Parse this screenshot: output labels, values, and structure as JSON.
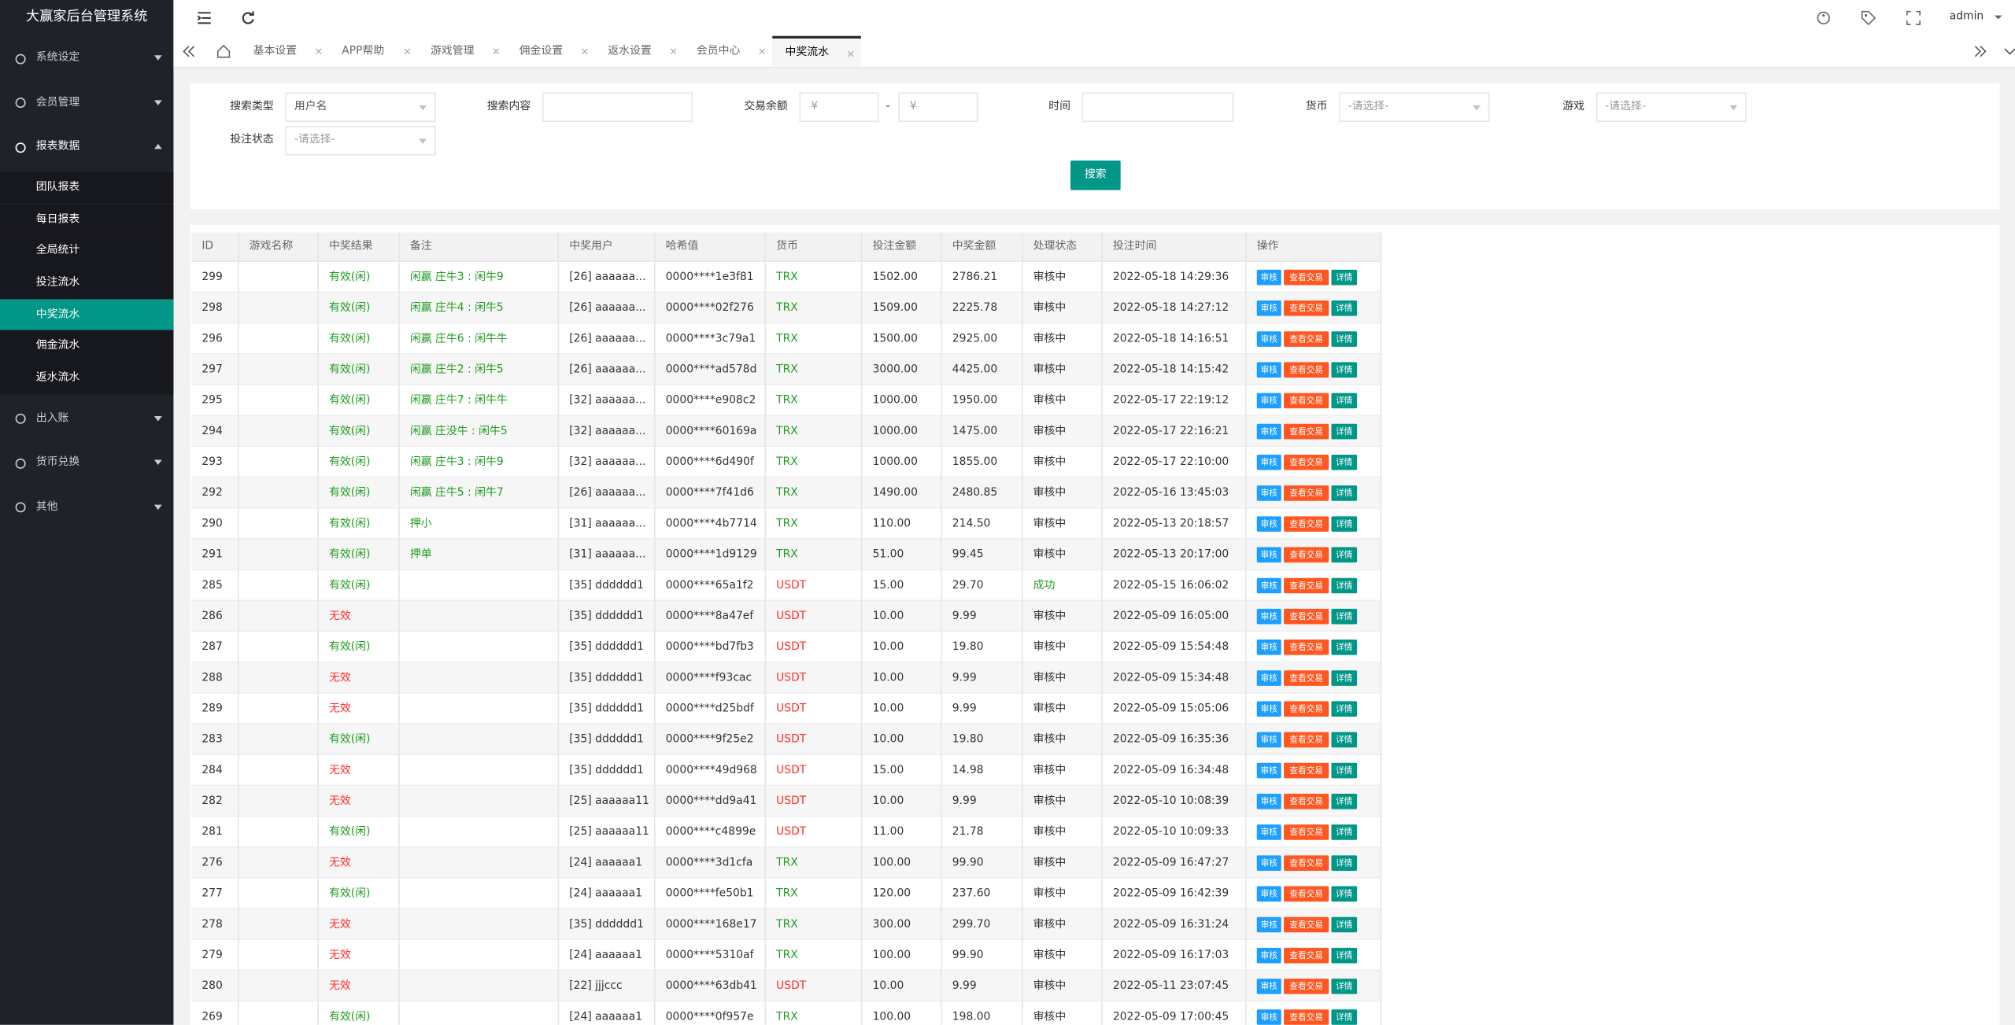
{
  "sidebar": {
    "title": "大赢家后台管理系统",
    "menu": [
      {
        "label": "系统设定"
      },
      {
        "label": "会员管理"
      },
      {
        "label": "报表数据",
        "children": [
          "团队报表",
          "每日报表",
          "全局统计",
          "投注流水",
          "中奖流水",
          "佣金流水",
          "返水流水"
        ]
      },
      {
        "label": "出入账"
      },
      {
        "label": "货币兑换"
      },
      {
        "label": "其他"
      }
    ],
    "active": "中奖流水"
  },
  "header": {
    "user": "admin"
  },
  "tabs": {
    "items": [
      "基本设置",
      "APP帮助",
      "游戏管理",
      "佣金设置",
      "返水设置",
      "会员中心",
      "中奖流水"
    ],
    "active": 6
  },
  "form": {
    "search_type_label": "搜索类型",
    "search_type_value": "用户名",
    "search_content_label": "搜索内容",
    "balance_label": "交易余额",
    "currency_symbol": "¥",
    "range_separator": "-",
    "time_label": "时间",
    "currency_label": "货币",
    "currency_placeholder": "-请选择-",
    "game_label": "游戏",
    "game_placeholder": "-请选择-",
    "bet_status_label": "投注状态",
    "bet_status_placeholder": "-请选择-",
    "search_button": "搜索"
  },
  "table": {
    "headers": [
      "ID",
      "游戏名称",
      "中奖结果",
      "备注",
      "中奖用户",
      "哈希值",
      "货币",
      "投注金额",
      "中奖金额",
      "处理状态",
      "投注时间",
      "操作"
    ],
    "actions": [
      "审核",
      "查看交易",
      "详情"
    ],
    "colors": {
      "有效(闲)": "#1f9d1f",
      "无效": "#ff2d2d",
      "TRX": "#1f9d1f",
      "USDT": "#ff2d2d",
      "成功": "#1f9d1f",
      "note": "#1f9d1f"
    },
    "rows": [
      [
        "299",
        "有效(闲)",
        "闲赢 庄牛3 : 闲牛9",
        "[26] aaaaaa...",
        "0000****1e3f81",
        "TRX",
        "1502.00",
        "2786.21",
        "审核中",
        "2022-05-18 14:29:36"
      ],
      [
        "298",
        "有效(闲)",
        "闲赢 庄牛4 : 闲牛5",
        "[26] aaaaaa...",
        "0000****02f276",
        "TRX",
        "1509.00",
        "2225.78",
        "审核中",
        "2022-05-18 14:27:12"
      ],
      [
        "296",
        "有效(闲)",
        "闲赢 庄牛6 : 闲牛牛",
        "[26] aaaaaa...",
        "0000****3c79a1",
        "TRX",
        "1500.00",
        "2925.00",
        "审核中",
        "2022-05-18 14:16:51"
      ],
      [
        "297",
        "有效(闲)",
        "闲赢 庄牛2 : 闲牛5",
        "[26] aaaaaa...",
        "0000****ad578d",
        "TRX",
        "3000.00",
        "4425.00",
        "审核中",
        "2022-05-18 14:15:42"
      ],
      [
        "295",
        "有效(闲)",
        "闲赢 庄牛7 : 闲牛牛",
        "[32] aaaaaa...",
        "0000****e908c2",
        "TRX",
        "1000.00",
        "1950.00",
        "审核中",
        "2022-05-17 22:19:12"
      ],
      [
        "294",
        "有效(闲)",
        "闲赢 庄没牛 : 闲牛5",
        "[32] aaaaaa...",
        "0000****60169a",
        "TRX",
        "1000.00",
        "1475.00",
        "审核中",
        "2022-05-17 22:16:21"
      ],
      [
        "293",
        "有效(闲)",
        "闲赢 庄牛3 : 闲牛9",
        "[32] aaaaaa...",
        "0000****6d490f",
        "TRX",
        "1000.00",
        "1855.00",
        "审核中",
        "2022-05-17 22:10:00"
      ],
      [
        "292",
        "有效(闲)",
        "闲赢 庄牛5 : 闲牛7",
        "[26] aaaaaa...",
        "0000****7f41d6",
        "TRX",
        "1490.00",
        "2480.85",
        "审核中",
        "2022-05-16 13:45:03"
      ],
      [
        "290",
        "有效(闲)",
        "押小",
        "[31] aaaaaa...",
        "0000****4b7714",
        "TRX",
        "110.00",
        "214.50",
        "审核中",
        "2022-05-13 20:18:57"
      ],
      [
        "291",
        "有效(闲)",
        "押单",
        "[31] aaaaaa...",
        "0000****1d9129",
        "TRX",
        "51.00",
        "99.45",
        "审核中",
        "2022-05-13 20:17:00"
      ],
      [
        "285",
        "有效(闲)",
        null,
        "[35] dddddd1",
        "0000****65a1f2",
        "USDT",
        "15.00",
        "29.70",
        "成功",
        "2022-05-15 16:06:02"
      ],
      [
        "286",
        "无效",
        null,
        "[35] dddddd1",
        "0000****8a47ef",
        "USDT",
        "10.00",
        "9.99",
        "审核中",
        "2022-05-09 16:05:00"
      ],
      [
        "287",
        "有效(闲)",
        null,
        "[35] dddddd1",
        "0000****bd7fb3",
        "USDT",
        "10.00",
        "19.80",
        "审核中",
        "2022-05-09 15:54:48"
      ],
      [
        "288",
        "无效",
        null,
        "[35] dddddd1",
        "0000****f93cac",
        "USDT",
        "10.00",
        "9.99",
        "审核中",
        "2022-05-09 15:34:48"
      ],
      [
        "289",
        "无效",
        null,
        "[35] dddddd1",
        "0000****d25bdf",
        "USDT",
        "10.00",
        "9.99",
        "审核中",
        "2022-05-09 15:05:06"
      ],
      [
        "283",
        "有效(闲)",
        null,
        "[35] dddddd1",
        "0000****9f25e2",
        "USDT",
        "10.00",
        "19.80",
        "审核中",
        "2022-05-09 16:35:36"
      ],
      [
        "284",
        "无效",
        null,
        "[35] dddddd1",
        "0000****49d968",
        "USDT",
        "15.00",
        "14.98",
        "审核中",
        "2022-05-09 16:34:48"
      ],
      [
        "282",
        "无效",
        null,
        "[25] aaaaaa11",
        "0000****dd9a41",
        "USDT",
        "10.00",
        "9.99",
        "审核中",
        "2022-05-10 10:08:39"
      ],
      [
        "281",
        "有效(闲)",
        null,
        "[25] aaaaaa11",
        "0000****c4899e",
        "USDT",
        "11.00",
        "21.78",
        "审核中",
        "2022-05-10 10:09:33"
      ],
      [
        "276",
        "无效",
        null,
        "[24] aaaaaa1",
        "0000****3d1cfa",
        "TRX",
        "100.00",
        "99.90",
        "审核中",
        "2022-05-09 16:47:27"
      ],
      [
        "277",
        "有效(闲)",
        null,
        "[24] aaaaaa1",
        "0000****fe50b1",
        "TRX",
        "120.00",
        "237.60",
        "审核中",
        "2022-05-09 16:42:39"
      ],
      [
        "278",
        "无效",
        null,
        "[35] dddddd1",
        "0000****168e17",
        "TRX",
        "300.00",
        "299.70",
        "审核中",
        "2022-05-09 16:31:24"
      ],
      [
        "279",
        "无效",
        null,
        "[24] aaaaaa1",
        "0000****5310af",
        "TRX",
        "100.00",
        "99.90",
        "审核中",
        "2022-05-09 16:17:03"
      ],
      [
        "280",
        "无效",
        null,
        "[22] jjjccc",
        "0000****63db41",
        "USDT",
        "10.00",
        "9.99",
        "审核中",
        "2022-05-11 23:07:45"
      ],
      [
        "269",
        "有效(闲)",
        null,
        "[24] aaaaaa1",
        "0000****0f957e",
        "TRX",
        "100.00",
        "198.00",
        "审核中",
        "2022-05-09 17:00:45"
      ]
    ]
  }
}
